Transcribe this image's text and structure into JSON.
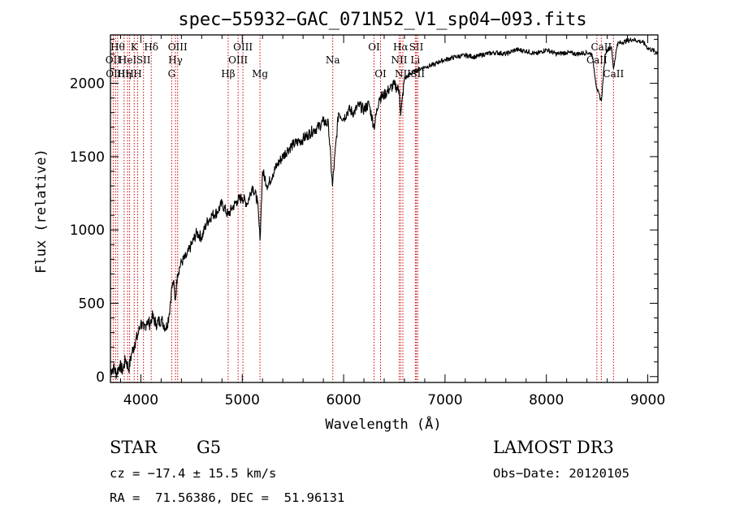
{
  "chart_data": {
    "type": "line",
    "title": "spec−55932−GAC_071N52_V1_sp04−093.fits",
    "xlabel": "Wavelength (Å)",
    "ylabel": "Flux (relative)",
    "xlim": [
      3700,
      9100
    ],
    "ylim": [
      -40,
      2330
    ],
    "x_ticks": [
      {
        "value": 4000,
        "label": "4000"
      },
      {
        "value": 5000,
        "label": "5000"
      },
      {
        "value": 6000,
        "label": "6000"
      },
      {
        "value": 7000,
        "label": "7000"
      },
      {
        "value": 8000,
        "label": "8000"
      },
      {
        "value": 9000,
        "label": "9000"
      }
    ],
    "y_ticks": [
      {
        "value": 0,
        "label": "0"
      },
      {
        "value": 500,
        "label": "500"
      },
      {
        "value": 1000,
        "label": "1000"
      },
      {
        "value": 1500,
        "label": "1500"
      },
      {
        "value": 2000,
        "label": "2000"
      }
    ],
    "grid": false,
    "series": [
      {
        "name": "spectrum",
        "x": [
          3700,
          3730,
          3760,
          3790,
          3820,
          3850,
          3880,
          3910,
          3940,
          3970,
          4000,
          4030,
          4060,
          4090,
          4110,
          4150,
          4200,
          4250,
          4280,
          4300,
          4320,
          4340,
          4360,
          4400,
          4450,
          4500,
          4550,
          4600,
          4650,
          4700,
          4750,
          4800,
          4860,
          4900,
          4950,
          5000,
          5050,
          5100,
          5150,
          5175,
          5200,
          5250,
          5300,
          5350,
          5400,
          5450,
          5500,
          5550,
          5600,
          5650,
          5700,
          5750,
          5800,
          5850,
          5890,
          5950,
          6000,
          6050,
          6100,
          6150,
          6200,
          6250,
          6300,
          6350,
          6400,
          6450,
          6500,
          6550,
          6563,
          6600,
          6650,
          6700,
          6750,
          6800,
          6850,
          6900,
          6950,
          7000,
          7100,
          7200,
          7300,
          7400,
          7500,
          7600,
          7700,
          7800,
          7900,
          8000,
          8100,
          8200,
          8300,
          8400,
          8450,
          8498,
          8542,
          8580,
          8600,
          8640,
          8662,
          8700,
          8750,
          8800,
          8850,
          8900,
          8950,
          8980,
          9000,
          9100
        ],
        "y": [
          40,
          60,
          20,
          80,
          40,
          120,
          50,
          160,
          230,
          280,
          370,
          320,
          380,
          360,
          410,
          360,
          390,
          330,
          430,
          580,
          650,
          520,
          700,
          780,
          820,
          900,
          980,
          950,
          1050,
          1100,
          1120,
          1180,
          1100,
          1150,
          1200,
          1220,
          1180,
          1300,
          1200,
          930,
          1400,
          1300,
          1380,
          1450,
          1500,
          1550,
          1580,
          1600,
          1620,
          1650,
          1680,
          1700,
          1740,
          1720,
          1300,
          1800,
          1760,
          1820,
          1800,
          1850,
          1820,
          1860,
          1700,
          1900,
          1920,
          1960,
          1990,
          1950,
          1780,
          2030,
          2060,
          2080,
          2100,
          2110,
          2120,
          2130,
          2150,
          2160,
          2180,
          2190,
          2180,
          2200,
          2210,
          2200,
          2230,
          2220,
          2200,
          2230,
          2200,
          2210,
          2200,
          2210,
          2200,
          1960,
          1880,
          2200,
          2230,
          2250,
          2100,
          2270,
          2280,
          2290,
          2300,
          2290,
          2280,
          2260,
          2240,
          2210
        ]
      }
    ],
    "line_markers": [
      {
        "wavelength": 3727,
        "label": "OII",
        "row": 2
      },
      {
        "wavelength": 3750,
        "label": "OIII",
        "row": 3
      },
      {
        "wavelength": 3771,
        "label": "Hθ",
        "row": 1
      },
      {
        "wavelength": 3835,
        "label": "Hη",
        "row": 3
      },
      {
        "wavelength": 3869,
        "label": "HeI",
        "row": 2
      },
      {
        "wavelength": 3889,
        "label": "H",
        "row": 3
      },
      {
        "wavelength": 3934,
        "label": "K",
        "row": 1
      },
      {
        "wavelength": 3968,
        "label": "H",
        "row": 3
      },
      {
        "wavelength": 4026,
        "label": "SII",
        "row": 2
      },
      {
        "wavelength": 4102,
        "label": "Hδ",
        "row": 1
      },
      {
        "wavelength": 4304,
        "label": "G",
        "row": 3
      },
      {
        "wavelength": 4341,
        "label": "Hγ",
        "row": 2
      },
      {
        "wavelength": 4363,
        "label": "OIII",
        "row": 1
      },
      {
        "wavelength": 4861,
        "label": "Hβ",
        "row": 3
      },
      {
        "wavelength": 4959,
        "label": "OIII",
        "row": 2
      },
      {
        "wavelength": 5007,
        "label": "OIII",
        "row": 1
      },
      {
        "wavelength": 5175,
        "label": "Mg",
        "row": 3
      },
      {
        "wavelength": 5893,
        "label": "Na",
        "row": 2
      },
      {
        "wavelength": 6300,
        "label": "OI",
        "row": 1
      },
      {
        "wavelength": 6364,
        "label": "OI",
        "row": 3
      },
      {
        "wavelength": 6548,
        "label": "NII",
        "row": 2
      },
      {
        "wavelength": 6563,
        "label": "Hα",
        "row": 1
      },
      {
        "wavelength": 6584,
        "label": "NII",
        "row": 3
      },
      {
        "wavelength": 6707,
        "label": "Li",
        "row": 2
      },
      {
        "wavelength": 6717,
        "label": "SII",
        "row": 1
      },
      {
        "wavelength": 6731,
        "label": "SII",
        "row": 3
      },
      {
        "wavelength": 8498,
        "label": "CaII",
        "row": 2
      },
      {
        "wavelength": 8542,
        "label": "CaII",
        "row": 1
      },
      {
        "wavelength": 8662,
        "label": "CaII",
        "row": 3
      }
    ]
  },
  "info": {
    "object_class": "STAR",
    "subclass": "G5",
    "survey": "LAMOST DR3",
    "cz": "cz = −17.4 ± 15.5 km/s",
    "obs_date": "Obs−Date: 20120105",
    "coords": "RA =  71.56386, DEC =  51.96131"
  },
  "colors": {
    "spectrum": "#000000",
    "line_marker": "#cc0000",
    "axes": "#000000"
  }
}
